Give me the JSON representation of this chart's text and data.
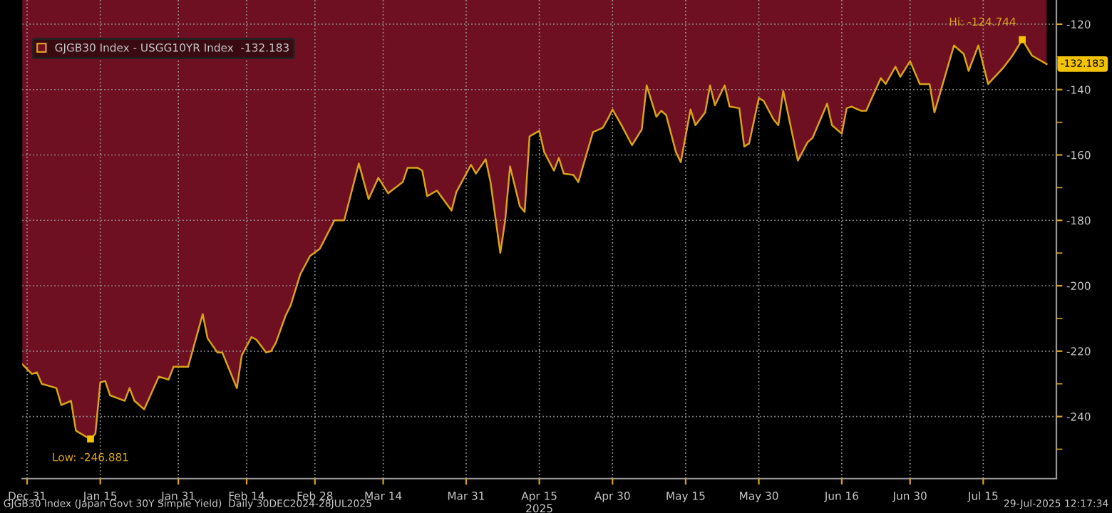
{
  "chart_data": {
    "type": "area",
    "xlabel": "2025",
    "series": [
      {
        "name": "GJGB30 Index - USGG10YR Index  -132.183",
        "color": "#6e0f22",
        "x": [
          "2024-12-30",
          "2025-01-01",
          "2025-01-02",
          "2025-01-03",
          "2025-01-06",
          "2025-01-07",
          "2025-01-09",
          "2025-01-10",
          "2025-01-13",
          "2025-01-14",
          "2025-01-15",
          "2025-01-16",
          "2025-01-17",
          "2025-01-20",
          "2025-01-21",
          "2025-01-22",
          "2025-01-24",
          "2025-01-27",
          "2025-01-29",
          "2025-01-30",
          "2025-02-02",
          "2025-02-05",
          "2025-02-06",
          "2025-02-08",
          "2025-02-09",
          "2025-02-12",
          "2025-02-13",
          "2025-02-15",
          "2025-02-16",
          "2025-02-18",
          "2025-02-19",
          "2025-02-20",
          "2025-02-22",
          "2025-02-23",
          "2025-02-25",
          "2025-02-27",
          "2025-03-01",
          "2025-03-04",
          "2025-03-06",
          "2025-03-09",
          "2025-03-11",
          "2025-03-13",
          "2025-03-15",
          "2025-03-18",
          "2025-03-19",
          "2025-03-21",
          "2025-03-22",
          "2025-03-23",
          "2025-03-25",
          "2025-03-28",
          "2025-03-29",
          "2025-04-01",
          "2025-04-02",
          "2025-04-04",
          "2025-04-05",
          "2025-04-07",
          "2025-04-08",
          "2025-04-09",
          "2025-04-11",
          "2025-04-12",
          "2025-04-13",
          "2025-04-15",
          "2025-04-16",
          "2025-04-18",
          "2025-04-19",
          "2025-04-20",
          "2025-04-22",
          "2025-04-23",
          "2025-04-26",
          "2025-04-28",
          "2025-04-29",
          "2025-04-30",
          "2025-05-02",
          "2025-05-04",
          "2025-05-06",
          "2025-05-07",
          "2025-05-09",
          "2025-05-10",
          "2025-05-11",
          "2025-05-13",
          "2025-05-14",
          "2025-05-16",
          "2025-05-17",
          "2025-05-19",
          "2025-05-20",
          "2025-05-21",
          "2025-05-23",
          "2025-05-24",
          "2025-05-26",
          "2025-05-27",
          "2025-05-28",
          "2025-05-30",
          "2025-05-31",
          "2025-06-02",
          "2025-06-03",
          "2025-06-04",
          "2025-06-07",
          "2025-06-09",
          "2025-06-10",
          "2025-06-13",
          "2025-06-14",
          "2025-06-16",
          "2025-06-17",
          "2025-06-18",
          "2025-06-20",
          "2025-06-21",
          "2025-06-24",
          "2025-06-25",
          "2025-06-27",
          "2025-06-28",
          "2025-06-30",
          "2025-07-02",
          "2025-07-04",
          "2025-07-05",
          "2025-07-09",
          "2025-07-11",
          "2025-07-12",
          "2025-07-14",
          "2025-07-16",
          "2025-07-19",
          "2025-07-21",
          "2025-07-23",
          "2025-07-25",
          "2025-07-28"
        ],
        "values": [
          -224,
          -227,
          -226.5,
          -230,
          -231.3,
          -236.5,
          -235.2,
          -244.3,
          -247,
          -245.2,
          -229.6,
          -229.1,
          -233.5,
          -235.2,
          -231.3,
          -235.2,
          -237.8,
          -227.8,
          -228.7,
          -224.8,
          -224.8,
          -208.7,
          -216.1,
          -220.4,
          -220.4,
          -231.3,
          -221.3,
          -215.7,
          -216.5,
          -220.4,
          -220,
          -217.4,
          -209.1,
          -206.1,
          -196.5,
          -190.9,
          -188.7,
          -180,
          -180,
          -162.6,
          -173.5,
          -167,
          -171.7,
          -168.3,
          -163.9,
          -163.9,
          -164.8,
          -172.6,
          -170.9,
          -177,
          -171.3,
          -163,
          -165.7,
          -161.3,
          -168.3,
          -190,
          -180,
          -163.5,
          -175.7,
          -177.4,
          -154.3,
          -152.6,
          -159.1,
          -164.8,
          -160.9,
          -165.7,
          -166.1,
          -168.3,
          -153,
          -151.7,
          -149.1,
          -146.1,
          -151.3,
          -157,
          -152.2,
          -138.7,
          -148.3,
          -146.5,
          -147.8,
          -159.1,
          -162.2,
          -146.1,
          -150.9,
          -147,
          -138.7,
          -144.8,
          -138.7,
          -145.2,
          -145.7,
          -157.4,
          -156.5,
          -142.6,
          -143.5,
          -149.1,
          -150.9,
          -140.4,
          -161.7,
          -156.1,
          -154.8,
          -144.3,
          -150.9,
          -153.5,
          -145.7,
          -145.2,
          -146.5,
          -146.5,
          -136.5,
          -138.3,
          -133,
          -136.1,
          -131.3,
          -138.3,
          -138.3,
          -147,
          -126.5,
          -129.1,
          -134.3,
          -126.5,
          -138.3,
          -133.5,
          -129.6,
          -124.7,
          -129.6,
          -132.2
        ]
      }
    ],
    "xlim": [
      "2024-12-30",
      "2025-07-30"
    ],
    "xticks": [
      {
        "value": "2024-12-31",
        "label": "Dec 31"
      },
      {
        "value": "2025-01-15",
        "label": "Jan 15"
      },
      {
        "value": "2025-01-31",
        "label": "Jan 31"
      },
      {
        "value": "2025-02-14",
        "label": "Feb 14"
      },
      {
        "value": "2025-02-28",
        "label": "Feb 28"
      },
      {
        "value": "2025-03-14",
        "label": "Mar 14"
      },
      {
        "value": "2025-03-31",
        "label": "Mar 31"
      },
      {
        "value": "2025-04-15",
        "label": "Apr 15"
      },
      {
        "value": "2025-04-30",
        "label": "Apr 30"
      },
      {
        "value": "2025-05-15",
        "label": "May 15"
      },
      {
        "value": "2025-05-30",
        "label": "May 30"
      },
      {
        "value": "2025-06-16",
        "label": "Jun 16"
      },
      {
        "value": "2025-06-30",
        "label": "Jun 30"
      },
      {
        "value": "2025-07-15",
        "label": "Jul 15"
      }
    ],
    "ylim": [
      -259,
      -112.6
    ],
    "yticks": [
      {
        "value": -250,
        "label": null
      },
      -240,
      {
        "value": -230,
        "label": null
      },
      -220,
      {
        "value": -210,
        "label": null
      },
      -200,
      {
        "value": -190,
        "label": null
      },
      -180,
      {
        "value": -170,
        "label": null
      },
      -160,
      {
        "value": -150,
        "label": null
      },
      -140,
      {
        "value": -130,
        "label": null
      },
      -120
    ],
    "grid": true,
    "legend": "top left",
    "annotations": [
      {
        "text": "Hi: -124.744",
        "x": "2025-07-23",
        "y": -124.744
      },
      {
        "text": "Low: -246.881",
        "x": "2025-01-13",
        "y": -246.881
      },
      {
        "text": "-132.183",
        "x": "2025-07-28",
        "y": -132.183
      },
      "GJGB30 Index (Japan Govt 30Y Simple Yield)  Daily 30DEC2024-28JUL2025",
      "29-Jul-2025 12:17:34"
    ]
  }
}
